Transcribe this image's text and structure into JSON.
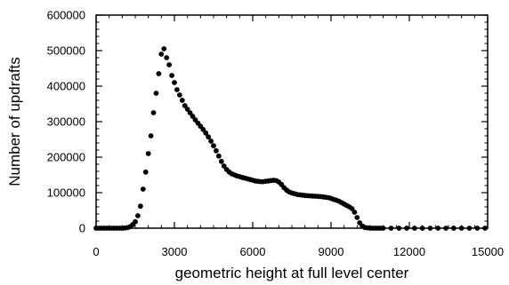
{
  "chart_data": {
    "type": "scatter",
    "xlabel": "geometric height at full level center",
    "ylabel": "Number of updrafts",
    "xlim": [
      0,
      15000
    ],
    "ylim": [
      0,
      600000
    ],
    "xticks": [
      0,
      3000,
      6000,
      9000,
      12000,
      15000
    ],
    "xtick_labels": [
      "0",
      "3000",
      "6000",
      "9000",
      "12000",
      "15000"
    ],
    "yticks": [
      0,
      100000,
      200000,
      300000,
      400000,
      500000,
      600000
    ],
    "ytick_labels": [
      "0",
      "100000",
      "200000",
      "300000",
      "400000",
      "500000",
      "600000"
    ],
    "grid": false,
    "marker_color": "#000000",
    "series": [
      {
        "points": [
          [
            0,
            0
          ],
          [
            100,
            0
          ],
          [
            200,
            0
          ],
          [
            300,
            0
          ],
          [
            400,
            0
          ],
          [
            500,
            0
          ],
          [
            600,
            0
          ],
          [
            700,
            0
          ],
          [
            800,
            0
          ],
          [
            900,
            0
          ],
          [
            1000,
            0
          ],
          [
            1100,
            500
          ],
          [
            1200,
            1500
          ],
          [
            1300,
            4000
          ],
          [
            1400,
            10000
          ],
          [
            1500,
            18000
          ],
          [
            1600,
            35000
          ],
          [
            1700,
            62000
          ],
          [
            1800,
            110000
          ],
          [
            1900,
            158000
          ],
          [
            2000,
            210000
          ],
          [
            2100,
            260000
          ],
          [
            2200,
            325000
          ],
          [
            2300,
            380000
          ],
          [
            2400,
            435000
          ],
          [
            2500,
            490000
          ],
          [
            2600,
            505000
          ],
          [
            2700,
            480000
          ],
          [
            2800,
            460000
          ],
          [
            2900,
            430000
          ],
          [
            3000,
            410000
          ],
          [
            3100,
            390000
          ],
          [
            3200,
            375000
          ],
          [
            3300,
            360000
          ],
          [
            3400,
            345000
          ],
          [
            3500,
            335000
          ],
          [
            3600,
            325000
          ],
          [
            3700,
            315000
          ],
          [
            3800,
            305000
          ],
          [
            3900,
            296000
          ],
          [
            4000,
            287000
          ],
          [
            4100,
            278000
          ],
          [
            4200,
            268000
          ],
          [
            4300,
            257000
          ],
          [
            4400,
            245000
          ],
          [
            4500,
            232000
          ],
          [
            4600,
            218000
          ],
          [
            4700,
            203000
          ],
          [
            4800,
            188000
          ],
          [
            4900,
            175000
          ],
          [
            5000,
            165000
          ],
          [
            5100,
            158000
          ],
          [
            5200,
            153000
          ],
          [
            5300,
            150000
          ],
          [
            5400,
            147000
          ],
          [
            5500,
            145000
          ],
          [
            5600,
            143000
          ],
          [
            5700,
            141000
          ],
          [
            5800,
            139000
          ],
          [
            5900,
            137000
          ],
          [
            6000,
            135000
          ],
          [
            6100,
            133000
          ],
          [
            6200,
            132000
          ],
          [
            6300,
            131000
          ],
          [
            6400,
            131000
          ],
          [
            6500,
            132000
          ],
          [
            6600,
            133000
          ],
          [
            6700,
            134000
          ],
          [
            6800,
            135000
          ],
          [
            6900,
            134000
          ],
          [
            7000,
            130000
          ],
          [
            7100,
            123000
          ],
          [
            7200,
            114000
          ],
          [
            7300,
            107000
          ],
          [
            7400,
            102000
          ],
          [
            7500,
            99000
          ],
          [
            7600,
            97000
          ],
          [
            7700,
            95000
          ],
          [
            7800,
            94000
          ],
          [
            7900,
            93000
          ],
          [
            8000,
            92000
          ],
          [
            8100,
            91500
          ],
          [
            8200,
            91000
          ],
          [
            8300,
            90500
          ],
          [
            8400,
            90000
          ],
          [
            8500,
            89500
          ],
          [
            8600,
            89000
          ],
          [
            8700,
            88000
          ],
          [
            8800,
            87000
          ],
          [
            8900,
            86000
          ],
          [
            9000,
            84000
          ],
          [
            9100,
            81000
          ],
          [
            9200,
            79000
          ],
          [
            9300,
            76000
          ],
          [
            9400,
            72000
          ],
          [
            9500,
            68000
          ],
          [
            9600,
            64000
          ],
          [
            9700,
            60000
          ],
          [
            9800,
            55000
          ],
          [
            9900,
            45000
          ],
          [
            10000,
            30000
          ],
          [
            10100,
            15000
          ],
          [
            10200,
            6000
          ],
          [
            10300,
            2000
          ],
          [
            10400,
            1000
          ],
          [
            10500,
            0
          ],
          [
            10600,
            0
          ],
          [
            10700,
            0
          ],
          [
            10800,
            0
          ],
          [
            10900,
            0
          ],
          [
            11000,
            0
          ],
          [
            11300,
            0
          ],
          [
            11600,
            0
          ],
          [
            11900,
            0
          ],
          [
            12200,
            0
          ],
          [
            12500,
            0
          ],
          [
            12800,
            0
          ],
          [
            13100,
            0
          ],
          [
            13400,
            0
          ],
          [
            13700,
            0
          ],
          [
            14000,
            0
          ],
          [
            14300,
            0
          ],
          [
            14600,
            0
          ],
          [
            14900,
            0
          ]
        ]
      }
    ]
  }
}
